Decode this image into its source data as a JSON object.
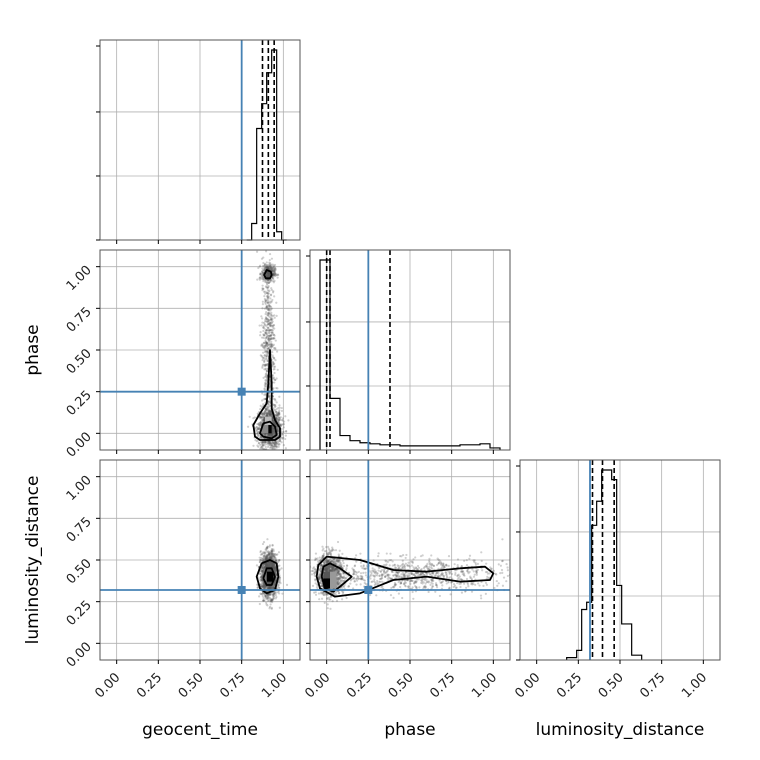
{
  "chart_data": {
    "type": "corner",
    "parameters": [
      "geocent_time",
      "phase",
      "luminosity_distance"
    ],
    "axis_range": [
      -0.1,
      1.1
    ],
    "ticks": [
      0.0,
      0.25,
      0.5,
      0.75,
      1.0
    ],
    "tick_labels": [
      "0.00",
      "0.25",
      "0.50",
      "0.75",
      "1.00"
    ],
    "grid": true,
    "colors": {
      "truth": "#4682b4",
      "hist": "#000000",
      "scatter": "#555555",
      "grid": "#b0b0b0",
      "frame": "#555555"
    },
    "truths": {
      "geocent_time": 0.75,
      "phase": 0.25,
      "luminosity_distance": 0.32
    },
    "quantiles": {
      "geocent_time": [
        0.875,
        0.91,
        0.945
      ],
      "phase": [
        0.0,
        0.02,
        0.38
      ],
      "luminosity_distance": [
        0.335,
        0.395,
        0.465
      ]
    },
    "histograms": {
      "geocent_time": {
        "bin_edges": [
          0.78,
          0.81,
          0.84,
          0.87,
          0.9,
          0.93,
          0.96,
          0.99,
          1.02
        ],
        "counts": [
          0,
          0.08,
          0.54,
          0.66,
          0.81,
          0.92,
          0.04,
          0
        ]
      },
      "phase": {
        "bin_edges": [
          -0.04,
          0.02,
          0.08,
          0.14,
          0.2,
          0.26,
          0.32,
          0.44,
          0.56,
          0.68,
          0.8,
          0.92,
          0.98,
          1.04
        ],
        "counts": [
          0.92,
          0.25,
          0.07,
          0.045,
          0.035,
          0.03,
          0.025,
          0.02,
          0.02,
          0.02,
          0.025,
          0.03,
          0.01
        ]
      },
      "luminosity_distance": {
        "bin_edges": [
          0.18,
          0.24,
          0.27,
          0.3,
          0.33,
          0.36,
          0.39,
          0.42,
          0.45,
          0.48,
          0.51,
          0.57,
          0.63
        ],
        "counts": [
          0.01,
          0.04,
          0.21,
          0.24,
          0.56,
          0.66,
          0.79,
          0.79,
          0.75,
          0.31,
          0.15,
          0.02
        ]
      }
    },
    "samples_2d": [
      {
        "x": "geocent_time",
        "y": "phase",
        "clusters": [
          {
            "cx": 0.92,
            "cy": 0.03,
            "sx": 0.035,
            "sy": 0.06,
            "n": 1300
          },
          {
            "cx": 0.91,
            "cy": 0.96,
            "sx": 0.02,
            "sy": 0.025,
            "n": 380
          },
          {
            "cx": 0.91,
            "cy": 0.5,
            "sx": 0.02,
            "sy": 0.28,
            "n": 650
          }
        ],
        "contours": [
          [
            [
              0.82,
              0.05
            ],
            [
              0.83,
              -0.02
            ],
            [
              0.86,
              -0.04
            ],
            [
              0.95,
              -0.04
            ],
            [
              0.98,
              -0.02
            ],
            [
              0.98,
              0.03
            ],
            [
              0.95,
              0.08
            ],
            [
              0.93,
              0.15
            ],
            [
              0.93,
              0.3
            ],
            [
              0.92,
              0.5
            ],
            [
              0.91,
              0.3
            ],
            [
              0.9,
              0.18
            ],
            [
              0.86,
              0.12
            ],
            [
              0.82,
              0.05
            ]
          ],
          [
            [
              0.86,
              0.0
            ],
            [
              0.88,
              -0.02
            ],
            [
              0.93,
              -0.03
            ],
            [
              0.96,
              -0.01
            ],
            [
              0.95,
              0.04
            ],
            [
              0.92,
              0.07
            ],
            [
              0.88,
              0.06
            ],
            [
              0.86,
              0.0
            ]
          ],
          [
            [
              0.885,
              0.95
            ],
            [
              0.895,
              0.93
            ],
            [
              0.92,
              0.93
            ],
            [
              0.93,
              0.95
            ],
            [
              0.925,
              0.97
            ],
            [
              0.9,
              0.98
            ],
            [
              0.885,
              0.95
            ]
          ]
        ],
        "density": [
          [
            0.89,
            0.0,
            0.93,
            0.05,
            "#000000"
          ],
          [
            0.87,
            0.0,
            0.91,
            0.05,
            "#888888"
          ],
          [
            0.89,
            0.05,
            0.93,
            0.1,
            "#bbbbbb"
          ]
        ]
      },
      {
        "x": "geocent_time",
        "y": "luminosity_distance",
        "clusters": [
          {
            "cx": 0.915,
            "cy": 0.41,
            "sx": 0.025,
            "sy": 0.065,
            "n": 1800
          }
        ],
        "contours": [
          [
            [
              0.84,
              0.4
            ],
            [
              0.86,
              0.33
            ],
            [
              0.9,
              0.3
            ],
            [
              0.95,
              0.32
            ],
            [
              0.97,
              0.4
            ],
            [
              0.96,
              0.48
            ],
            [
              0.92,
              0.5
            ],
            [
              0.87,
              0.48
            ],
            [
              0.84,
              0.4
            ]
          ],
          [
            [
              0.88,
              0.39
            ],
            [
              0.9,
              0.35
            ],
            [
              0.93,
              0.35
            ],
            [
              0.95,
              0.4
            ],
            [
              0.93,
              0.45
            ],
            [
              0.9,
              0.45
            ],
            [
              0.88,
              0.39
            ]
          ]
        ],
        "density": [
          [
            0.9,
            0.37,
            0.94,
            0.43,
            "#000000"
          ],
          [
            0.88,
            0.37,
            0.9,
            0.45,
            "#777777"
          ]
        ]
      },
      {
        "x": "phase",
        "y": "luminosity_distance",
        "clusters": [
          {
            "cx": 0.02,
            "cy": 0.41,
            "sx": 0.04,
            "sy": 0.06,
            "n": 1100
          },
          {
            "cx": 0.5,
            "cy": 0.41,
            "sx": 0.29,
            "sy": 0.05,
            "n": 900
          }
        ],
        "contours": [
          [
            [
              -0.06,
              0.4
            ],
            [
              -0.04,
              0.33
            ],
            [
              0.05,
              0.28
            ],
            [
              0.2,
              0.3
            ],
            [
              0.4,
              0.38
            ],
            [
              0.6,
              0.4
            ],
            [
              0.8,
              0.37
            ],
            [
              0.98,
              0.38
            ],
            [
              1.0,
              0.42
            ],
            [
              0.95,
              0.46
            ],
            [
              0.8,
              0.45
            ],
            [
              0.6,
              0.43
            ],
            [
              0.4,
              0.44
            ],
            [
              0.2,
              0.5
            ],
            [
              0.0,
              0.52
            ],
            [
              -0.05,
              0.47
            ],
            [
              -0.06,
              0.4
            ]
          ],
          [
            [
              -0.03,
              0.4
            ],
            [
              -0.01,
              0.33
            ],
            [
              0.04,
              0.31
            ],
            [
              0.08,
              0.34
            ],
            [
              0.15,
              0.4
            ],
            [
              0.08,
              0.45
            ],
            [
              0.02,
              0.48
            ],
            [
              -0.02,
              0.46
            ],
            [
              -0.03,
              0.4
            ]
          ]
        ],
        "density": [
          [
            -0.02,
            0.33,
            0.02,
            0.39,
            "#000000"
          ],
          [
            -0.02,
            0.39,
            0.02,
            0.43,
            "#555555"
          ],
          [
            0.02,
            0.33,
            0.06,
            0.43,
            "#999999"
          ]
        ]
      }
    ]
  }
}
